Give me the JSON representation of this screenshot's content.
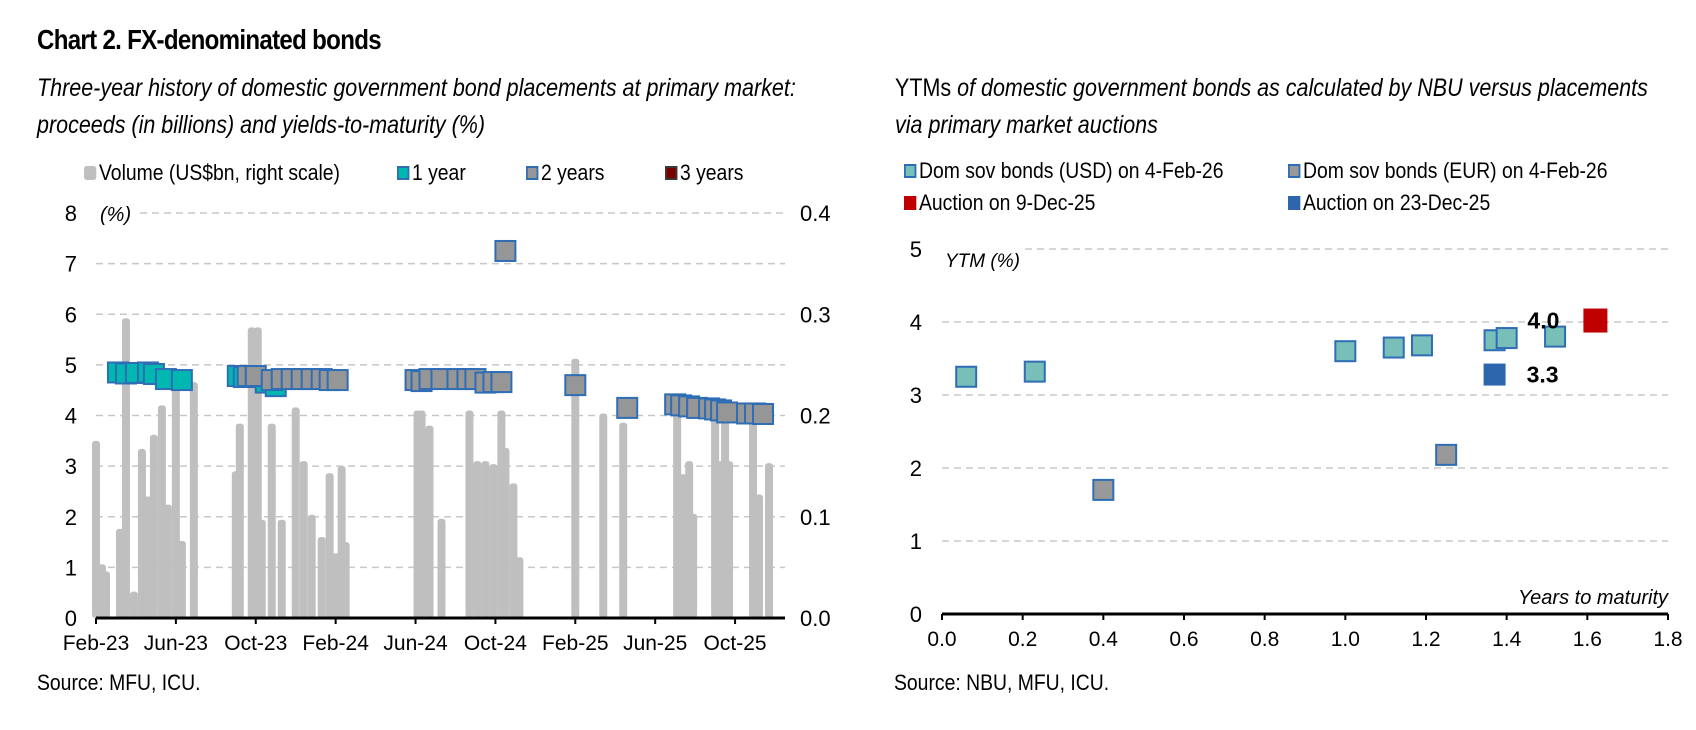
{
  "title": "Chart 2. FX-denominated bonds",
  "left_panel": {
    "subtitle_line1": "Three-year history of domestic government bond placements at primary market:",
    "subtitle_line2": "proceeds (in billions) and yields-to-maturity (%)",
    "source": "Source: MFU, ICU.",
    "colors": {
      "volume": "#bfbfbf",
      "one_year": "#00b8b0",
      "two_years": "#969696",
      "three_years": "#7b0000",
      "marker_border": "#2f6db5"
    }
  },
  "right_panel": {
    "subtitle_bold": "YTMs",
    "subtitle_rest": " of domestic government bonds as calculated by NBU versus placements",
    "subtitle_line2": "via primary market auctions",
    "source": "Source: NBU, MFU, ICU.",
    "colors": {
      "usd": "#77bfb8",
      "eur": "#999999",
      "auction_dec9": "#c00000",
      "auction_dec23": "#2e66ad",
      "marker_border": "#2f6db5"
    }
  },
  "chart_data": [
    {
      "type": "bar+scatter",
      "title": "Three-year history of domestic government bond placements at primary market: proceeds (in billions) and yields-to-maturity (%)",
      "ylabel": "(%)",
      "ylabel_right": "Volume (US$bn, right scale)",
      "ylim": [
        0,
        8
      ],
      "ylim_right": [
        0,
        0.4
      ],
      "yticks": [
        "0",
        "1",
        "2",
        "3",
        "4",
        "5",
        "6",
        "7",
        "8"
      ],
      "yticks_right": [
        "0.0",
        "0.1",
        "0.2",
        "0.3",
        "0.4"
      ],
      "xticks": [
        "Feb-23",
        "Jun-23",
        "Oct-23",
        "Feb-24",
        "Jun-24",
        "Oct-24",
        "Feb-25",
        "Jun-25",
        "Oct-25"
      ],
      "x_range_months": [
        0,
        34.5
      ],
      "grid": true,
      "legend": [
        "Volume (US$bn, right scale)",
        "1 year",
        "2 years",
        "3 years"
      ],
      "legend_position": "top",
      "volume_bars": [
        {
          "m": 0.0,
          "v": 0.175
        },
        {
          "m": 0.3,
          "v": 0.053
        },
        {
          "m": 0.5,
          "v": 0.046
        },
        {
          "m": 1.2,
          "v": 0.088
        },
        {
          "m": 1.5,
          "v": 0.296
        },
        {
          "m": 1.9,
          "v": 0.026
        },
        {
          "m": 2.3,
          "v": 0.167
        },
        {
          "m": 2.6,
          "v": 0.12
        },
        {
          "m": 2.9,
          "v": 0.181
        },
        {
          "m": 3.3,
          "v": 0.21
        },
        {
          "m": 3.6,
          "v": 0.112
        },
        {
          "m": 4.0,
          "v": 0.233
        },
        {
          "m": 4.3,
          "v": 0.076
        },
        {
          "m": 4.9,
          "v": 0.233
        },
        {
          "m": 7.0,
          "v": 0.145
        },
        {
          "m": 7.2,
          "v": 0.192
        },
        {
          "m": 7.8,
          "v": 0.287
        },
        {
          "m": 8.1,
          "v": 0.287
        },
        {
          "m": 8.3,
          "v": 0.097
        },
        {
          "m": 8.8,
          "v": 0.192
        },
        {
          "m": 9.3,
          "v": 0.097
        },
        {
          "m": 10.0,
          "v": 0.208
        },
        {
          "m": 10.4,
          "v": 0.155
        },
        {
          "m": 10.8,
          "v": 0.102
        },
        {
          "m": 11.3,
          "v": 0.08
        },
        {
          "m": 11.7,
          "v": 0.143
        },
        {
          "m": 12.0,
          "v": 0.064
        },
        {
          "m": 12.3,
          "v": 0.15
        },
        {
          "m": 12.5,
          "v": 0.075
        },
        {
          "m": 16.1,
          "v": 0.205
        },
        {
          "m": 16.3,
          "v": 0.205
        },
        {
          "m": 16.7,
          "v": 0.19
        },
        {
          "m": 17.3,
          "v": 0.098
        },
        {
          "m": 18.7,
          "v": 0.205
        },
        {
          "m": 19.1,
          "v": 0.155
        },
        {
          "m": 19.5,
          "v": 0.155
        },
        {
          "m": 19.9,
          "v": 0.152
        },
        {
          "m": 20.3,
          "v": 0.205
        },
        {
          "m": 20.5,
          "v": 0.168
        },
        {
          "m": 20.9,
          "v": 0.133
        },
        {
          "m": 21.2,
          "v": 0.06
        },
        {
          "m": 24.0,
          "v": 0.256
        },
        {
          "m": 25.4,
          "v": 0.202
        },
        {
          "m": 26.4,
          "v": 0.193
        },
        {
          "m": 29.1,
          "v": 0.205
        },
        {
          "m": 29.4,
          "v": 0.142
        },
        {
          "m": 29.7,
          "v": 0.155
        },
        {
          "m": 29.9,
          "v": 0.103
        },
        {
          "m": 31.0,
          "v": 0.205
        },
        {
          "m": 31.3,
          "v": 0.155
        },
        {
          "m": 31.5,
          "v": 0.205
        },
        {
          "m": 31.7,
          "v": 0.155
        },
        {
          "m": 32.9,
          "v": 0.205
        },
        {
          "m": 33.2,
          "v": 0.122
        },
        {
          "m": 33.7,
          "v": 0.153
        }
      ],
      "series": [
        {
          "name": "1 year",
          "points": [
            {
              "m": 1.1,
              "y": 4.85
            },
            {
              "m": 1.5,
              "y": 4.83
            },
            {
              "m": 2.0,
              "y": 4.84
            },
            {
              "m": 2.6,
              "y": 4.85
            },
            {
              "m": 2.9,
              "y": 4.82
            },
            {
              "m": 3.5,
              "y": 4.72
            },
            {
              "m": 4.3,
              "y": 4.7
            },
            {
              "m": 7.1,
              "y": 4.78
            },
            {
              "m": 7.4,
              "y": 4.76
            },
            {
              "m": 8.5,
              "y": 4.65
            },
            {
              "m": 9.0,
              "y": 4.58
            }
          ]
        },
        {
          "name": "2 years",
          "points": [
            {
              "m": 7.6,
              "y": 4.78
            },
            {
              "m": 8.0,
              "y": 4.78
            },
            {
              "m": 8.8,
              "y": 4.7
            },
            {
              "m": 9.3,
              "y": 4.72
            },
            {
              "m": 9.8,
              "y": 4.72
            },
            {
              "m": 10.3,
              "y": 4.72
            },
            {
              "m": 10.8,
              "y": 4.72
            },
            {
              "m": 11.3,
              "y": 4.72
            },
            {
              "m": 11.7,
              "y": 4.7
            },
            {
              "m": 12.1,
              "y": 4.7
            },
            {
              "m": 16.0,
              "y": 4.7
            },
            {
              "m": 16.3,
              "y": 4.68
            },
            {
              "m": 16.7,
              "y": 4.72
            },
            {
              "m": 17.3,
              "y": 4.72
            },
            {
              "m": 18.1,
              "y": 4.72
            },
            {
              "m": 18.6,
              "y": 4.72
            },
            {
              "m": 19.0,
              "y": 4.72
            },
            {
              "m": 19.5,
              "y": 4.65
            },
            {
              "m": 19.9,
              "y": 4.66
            },
            {
              "m": 20.3,
              "y": 4.66
            },
            {
              "m": 20.5,
              "y": 7.25
            },
            {
              "m": 24.0,
              "y": 4.6
            },
            {
              "m": 26.6,
              "y": 4.15
            },
            {
              "m": 29.0,
              "y": 4.22
            },
            {
              "m": 29.3,
              "y": 4.2
            },
            {
              "m": 29.7,
              "y": 4.18
            },
            {
              "m": 30.1,
              "y": 4.15
            },
            {
              "m": 30.7,
              "y": 4.14
            },
            {
              "m": 31.0,
              "y": 4.12
            },
            {
              "m": 31.3,
              "y": 4.1
            },
            {
              "m": 31.6,
              "y": 4.06
            },
            {
              "m": 32.6,
              "y": 4.04
            },
            {
              "m": 33.0,
              "y": 4.04
            },
            {
              "m": 33.4,
              "y": 4.03
            }
          ]
        },
        {
          "name": "3 years",
          "points": []
        }
      ]
    },
    {
      "type": "scatter",
      "title": "YTMs of domestic government bonds as calculated by NBU versus placements via primary market auctions",
      "xlabel": "Years to maturity",
      "ylabel": "YTM (%)",
      "xlim": [
        0,
        1.8
      ],
      "ylim": [
        0,
        5
      ],
      "xticks": [
        "0.0",
        "0.2",
        "0.4",
        "0.6",
        "0.8",
        "1.0",
        "1.2",
        "1.4",
        "1.6",
        "1.8"
      ],
      "yticks": [
        "0",
        "1",
        "2",
        "3",
        "4",
        "5"
      ],
      "grid": true,
      "legend": [
        "Dom sov bonds (USD) on 4-Feb-26",
        "Dom sov bonds (EUR) on 4-Feb-26",
        "Auction on 9-Dec-25",
        "Auction on 23-Dec-25"
      ],
      "legend_position": "top",
      "series": [
        {
          "name": "Dom sov bonds (USD) on 4-Feb-26",
          "points": [
            {
              "x": 0.06,
              "y": 3.25
            },
            {
              "x": 0.23,
              "y": 3.32
            },
            {
              "x": 1.0,
              "y": 3.6
            },
            {
              "x": 1.12,
              "y": 3.65
            },
            {
              "x": 1.19,
              "y": 3.68
            },
            {
              "x": 1.37,
              "y": 3.75
            },
            {
              "x": 1.4,
              "y": 3.78
            },
            {
              "x": 1.52,
              "y": 3.8
            }
          ]
        },
        {
          "name": "Dom sov bonds (EUR) on 4-Feb-26",
          "points": [
            {
              "x": 0.4,
              "y": 1.7
            },
            {
              "x": 1.25,
              "y": 2.18
            }
          ]
        },
        {
          "name": "Auction on 9-Dec-25",
          "points": [
            {
              "x": 1.62,
              "y": 4.02,
              "label": "4.0"
            }
          ]
        },
        {
          "name": "Auction on 23-Dec-25",
          "points": [
            {
              "x": 1.37,
              "y": 3.28,
              "label": "3.3"
            }
          ]
        }
      ]
    }
  ]
}
